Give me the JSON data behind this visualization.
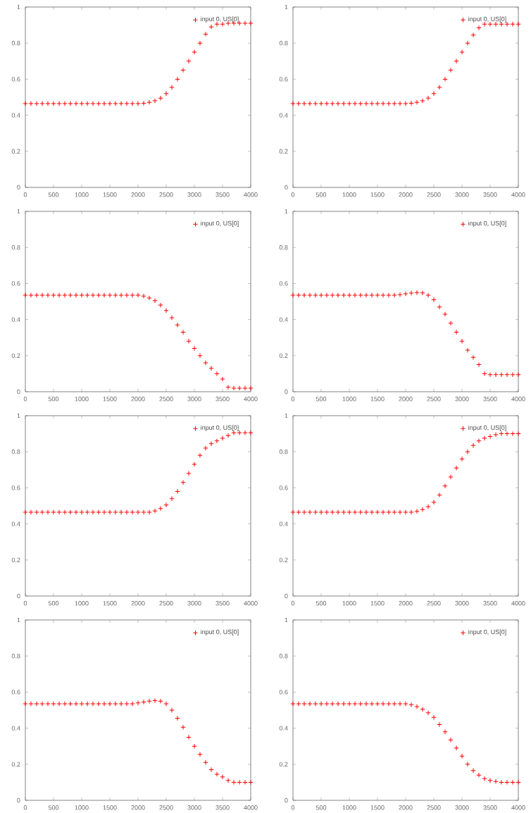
{
  "chart_data": [
    {
      "type": "scatter",
      "marker": "cross",
      "legend": "top right",
      "xlim": [
        0,
        4000
      ],
      "ylim": [
        0,
        1
      ],
      "xticks": [
        0,
        500,
        1000,
        1500,
        2000,
        2500,
        3000,
        3500,
        4000
      ],
      "yticks": [
        0,
        0.2,
        0.4,
        0.6,
        0.8,
        1
      ],
      "x": [
        0,
        100,
        200,
        300,
        400,
        500,
        600,
        700,
        800,
        900,
        1000,
        1100,
        1200,
        1300,
        1400,
        1500,
        1600,
        1700,
        1800,
        1900,
        2000,
        2100,
        2200,
        2300,
        2400,
        2500,
        2600,
        2700,
        2800,
        2900,
        3000,
        3100,
        3200,
        3300,
        3400,
        3500,
        3600,
        3700,
        3800,
        3900,
        4000
      ],
      "series": [
        {
          "name": "input 0, US[0]",
          "color": "#ff0000",
          "values": [
            0.465,
            0.465,
            0.465,
            0.465,
            0.465,
            0.465,
            0.465,
            0.465,
            0.465,
            0.465,
            0.465,
            0.465,
            0.465,
            0.465,
            0.465,
            0.465,
            0.465,
            0.465,
            0.465,
            0.465,
            0.465,
            0.467,
            0.472,
            0.48,
            0.495,
            0.52,
            0.555,
            0.6,
            0.65,
            0.7,
            0.75,
            0.8,
            0.85,
            0.89,
            0.905,
            0.905,
            0.91,
            0.91,
            0.91,
            0.91,
            0.91
          ]
        }
      ]
    },
    {
      "type": "scatter",
      "marker": "cross",
      "legend": "top right",
      "xlim": [
        0,
        4000
      ],
      "ylim": [
        0,
        1
      ],
      "xticks": [
        0,
        500,
        1000,
        1500,
        2000,
        2500,
        3000,
        3500,
        4000
      ],
      "yticks": [
        0,
        0.2,
        0.4,
        0.6,
        0.8,
        1
      ],
      "x": [
        0,
        100,
        200,
        300,
        400,
        500,
        600,
        700,
        800,
        900,
        1000,
        1100,
        1200,
        1300,
        1400,
        1500,
        1600,
        1700,
        1800,
        1900,
        2000,
        2100,
        2200,
        2300,
        2400,
        2500,
        2600,
        2700,
        2800,
        2900,
        3000,
        3100,
        3200,
        3300,
        3400,
        3500,
        3600,
        3700,
        3800,
        3900,
        4000
      ],
      "series": [
        {
          "name": "input 0, US[0]",
          "color": "#ff0000",
          "values": [
            0.465,
            0.465,
            0.465,
            0.465,
            0.465,
            0.465,
            0.465,
            0.465,
            0.465,
            0.465,
            0.465,
            0.465,
            0.465,
            0.465,
            0.465,
            0.465,
            0.465,
            0.465,
            0.465,
            0.465,
            0.465,
            0.467,
            0.472,
            0.48,
            0.495,
            0.52,
            0.555,
            0.6,
            0.65,
            0.7,
            0.75,
            0.8,
            0.845,
            0.885,
            0.905,
            0.905,
            0.905,
            0.905,
            0.905,
            0.905,
            0.905
          ]
        }
      ]
    },
    {
      "type": "scatter",
      "marker": "cross",
      "legend": "top right",
      "xlim": [
        0,
        4000
      ],
      "ylim": [
        0,
        1
      ],
      "xticks": [
        0,
        500,
        1000,
        1500,
        2000,
        2500,
        3000,
        3500,
        4000
      ],
      "yticks": [
        0,
        0.2,
        0.4,
        0.6,
        0.8,
        1
      ],
      "x": [
        0,
        100,
        200,
        300,
        400,
        500,
        600,
        700,
        800,
        900,
        1000,
        1100,
        1200,
        1300,
        1400,
        1500,
        1600,
        1700,
        1800,
        1900,
        2000,
        2100,
        2200,
        2300,
        2400,
        2500,
        2600,
        2700,
        2800,
        2900,
        3000,
        3100,
        3200,
        3300,
        3400,
        3500,
        3600,
        3700,
        3800,
        3900,
        4000
      ],
      "series": [
        {
          "name": "input 0, US[0]",
          "color": "#ff0000",
          "values": [
            0.535,
            0.535,
            0.535,
            0.535,
            0.535,
            0.535,
            0.535,
            0.535,
            0.535,
            0.535,
            0.535,
            0.535,
            0.535,
            0.535,
            0.535,
            0.535,
            0.535,
            0.535,
            0.535,
            0.535,
            0.535,
            0.53,
            0.52,
            0.505,
            0.48,
            0.45,
            0.41,
            0.37,
            0.33,
            0.28,
            0.24,
            0.2,
            0.16,
            0.13,
            0.1,
            0.07,
            0.025,
            0.02,
            0.02,
            0.02,
            0.02
          ]
        }
      ]
    },
    {
      "type": "scatter",
      "marker": "cross",
      "legend": "top right",
      "xlim": [
        0,
        4000
      ],
      "ylim": [
        0,
        1
      ],
      "xticks": [
        0,
        500,
        1000,
        1500,
        2000,
        2500,
        3000,
        3500,
        4000
      ],
      "yticks": [
        0,
        0.2,
        0.4,
        0.6,
        0.8,
        1
      ],
      "x": [
        0,
        100,
        200,
        300,
        400,
        500,
        600,
        700,
        800,
        900,
        1000,
        1100,
        1200,
        1300,
        1400,
        1500,
        1600,
        1700,
        1800,
        1900,
        2000,
        2100,
        2200,
        2300,
        2400,
        2500,
        2600,
        2700,
        2800,
        2900,
        3000,
        3100,
        3200,
        3300,
        3400,
        3500,
        3600,
        3700,
        3800,
        3900,
        4000
      ],
      "series": [
        {
          "name": "input 0, US[0]",
          "color": "#ff0000",
          "values": [
            0.535,
            0.535,
            0.535,
            0.535,
            0.535,
            0.535,
            0.535,
            0.535,
            0.535,
            0.535,
            0.535,
            0.535,
            0.535,
            0.535,
            0.535,
            0.535,
            0.535,
            0.535,
            0.535,
            0.538,
            0.543,
            0.547,
            0.55,
            0.548,
            0.535,
            0.51,
            0.47,
            0.43,
            0.38,
            0.33,
            0.28,
            0.23,
            0.19,
            0.15,
            0.1,
            0.095,
            0.095,
            0.095,
            0.095,
            0.095,
            0.095
          ]
        }
      ]
    },
    {
      "type": "scatter",
      "marker": "cross",
      "legend": "top right",
      "xlim": [
        0,
        4000
      ],
      "ylim": [
        0,
        1
      ],
      "xticks": [
        0,
        500,
        1000,
        1500,
        2000,
        2500,
        3000,
        3500,
        4000
      ],
      "yticks": [
        0,
        0.2,
        0.4,
        0.6,
        0.8,
        1
      ],
      "x": [
        0,
        100,
        200,
        300,
        400,
        500,
        600,
        700,
        800,
        900,
        1000,
        1100,
        1200,
        1300,
        1400,
        1500,
        1600,
        1700,
        1800,
        1900,
        2000,
        2100,
        2200,
        2300,
        2400,
        2500,
        2600,
        2700,
        2800,
        2900,
        3000,
        3100,
        3200,
        3300,
        3400,
        3500,
        3600,
        3700,
        3800,
        3900,
        4000
      ],
      "series": [
        {
          "name": "input 0, US[0]",
          "color": "#ff0000",
          "values": [
            0.465,
            0.465,
            0.465,
            0.465,
            0.465,
            0.465,
            0.465,
            0.465,
            0.465,
            0.465,
            0.465,
            0.465,
            0.465,
            0.465,
            0.465,
            0.465,
            0.465,
            0.465,
            0.465,
            0.465,
            0.465,
            0.465,
            0.465,
            0.472,
            0.485,
            0.505,
            0.54,
            0.58,
            0.63,
            0.68,
            0.73,
            0.78,
            0.82,
            0.845,
            0.86,
            0.875,
            0.89,
            0.905,
            0.905,
            0.905,
            0.905
          ]
        }
      ]
    },
    {
      "type": "scatter",
      "marker": "cross",
      "legend": "top right",
      "xlim": [
        0,
        4000
      ],
      "ylim": [
        0,
        1
      ],
      "xticks": [
        0,
        500,
        1000,
        1500,
        2000,
        2500,
        3000,
        3500,
        4000
      ],
      "yticks": [
        0,
        0.2,
        0.4,
        0.6,
        0.8,
        1
      ],
      "x": [
        0,
        100,
        200,
        300,
        400,
        500,
        600,
        700,
        800,
        900,
        1000,
        1100,
        1200,
        1300,
        1400,
        1500,
        1600,
        1700,
        1800,
        1900,
        2000,
        2100,
        2200,
        2300,
        2400,
        2500,
        2600,
        2700,
        2800,
        2900,
        3000,
        3100,
        3200,
        3300,
        3400,
        3500,
        3600,
        3700,
        3800,
        3900,
        4000
      ],
      "series": [
        {
          "name": "input 0, US[0]",
          "color": "#ff0000",
          "values": [
            0.465,
            0.465,
            0.465,
            0.465,
            0.465,
            0.465,
            0.465,
            0.465,
            0.465,
            0.465,
            0.465,
            0.465,
            0.465,
            0.465,
            0.465,
            0.465,
            0.465,
            0.465,
            0.465,
            0.465,
            0.465,
            0.465,
            0.47,
            0.48,
            0.495,
            0.52,
            0.56,
            0.61,
            0.66,
            0.71,
            0.76,
            0.8,
            0.835,
            0.86,
            0.875,
            0.885,
            0.895,
            0.9,
            0.9,
            0.9,
            0.9
          ]
        }
      ]
    },
    {
      "type": "scatter",
      "marker": "cross",
      "legend": "top right",
      "xlim": [
        0,
        4000
      ],
      "ylim": [
        0,
        1
      ],
      "xticks": [
        0,
        500,
        1000,
        1500,
        2000,
        2500,
        3000,
        3500,
        4000
      ],
      "yticks": [
        0,
        0.2,
        0.4,
        0.6,
        0.8,
        1
      ],
      "x": [
        0,
        100,
        200,
        300,
        400,
        500,
        600,
        700,
        800,
        900,
        1000,
        1100,
        1200,
        1300,
        1400,
        1500,
        1600,
        1700,
        1800,
        1900,
        2000,
        2100,
        2200,
        2300,
        2400,
        2500,
        2600,
        2700,
        2800,
        2900,
        3000,
        3100,
        3200,
        3300,
        3400,
        3500,
        3600,
        3700,
        3800,
        3900,
        4000
      ],
      "series": [
        {
          "name": "input 0, US[0]",
          "color": "#ff0000",
          "values": [
            0.535,
            0.535,
            0.535,
            0.535,
            0.535,
            0.535,
            0.535,
            0.535,
            0.535,
            0.535,
            0.535,
            0.535,
            0.535,
            0.535,
            0.535,
            0.535,
            0.535,
            0.535,
            0.535,
            0.535,
            0.54,
            0.545,
            0.55,
            0.553,
            0.55,
            0.535,
            0.5,
            0.455,
            0.405,
            0.35,
            0.3,
            0.255,
            0.21,
            0.17,
            0.145,
            0.13,
            0.11,
            0.1,
            0.1,
            0.1,
            0.1
          ]
        }
      ]
    },
    {
      "type": "scatter",
      "marker": "cross",
      "legend": "top right",
      "xlim": [
        0,
        4000
      ],
      "ylim": [
        0,
        1
      ],
      "xticks": [
        0,
        500,
        1000,
        1500,
        2000,
        2500,
        3000,
        3500,
        4000
      ],
      "yticks": [
        0,
        0.2,
        0.4,
        0.6,
        0.8,
        1
      ],
      "x": [
        0,
        100,
        200,
        300,
        400,
        500,
        600,
        700,
        800,
        900,
        1000,
        1100,
        1200,
        1300,
        1400,
        1500,
        1600,
        1700,
        1800,
        1900,
        2000,
        2100,
        2200,
        2300,
        2400,
        2500,
        2600,
        2700,
        2800,
        2900,
        3000,
        3100,
        3200,
        3300,
        3400,
        3500,
        3600,
        3700,
        3800,
        3900,
        4000
      ],
      "series": [
        {
          "name": "input 0, US[0]",
          "color": "#ff0000",
          "values": [
            0.535,
            0.535,
            0.535,
            0.535,
            0.535,
            0.535,
            0.535,
            0.535,
            0.535,
            0.535,
            0.535,
            0.535,
            0.535,
            0.535,
            0.535,
            0.535,
            0.535,
            0.535,
            0.535,
            0.535,
            0.535,
            0.53,
            0.52,
            0.505,
            0.485,
            0.46,
            0.42,
            0.38,
            0.335,
            0.29,
            0.245,
            0.2,
            0.165,
            0.14,
            0.12,
            0.11,
            0.105,
            0.1,
            0.1,
            0.1,
            0.1
          ]
        }
      ]
    }
  ]
}
